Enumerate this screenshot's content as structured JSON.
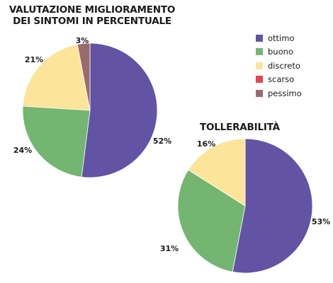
{
  "chart_data": [
    {
      "type": "pie",
      "title_lines": [
        "VALUTAZIONE MIGLIORAMENTO",
        "DEI SINTOMI IN PERCENTUALE"
      ],
      "slices": [
        {
          "label": "ottimo",
          "value": 52,
          "text": "52%",
          "color": "#6353a5"
        },
        {
          "label": "buono",
          "value": 24,
          "text": "24%",
          "color": "#73b571"
        },
        {
          "label": "discreto",
          "value": 21,
          "text": "21%",
          "color": "#fde49b"
        },
        {
          "label": "scarso",
          "value": 0,
          "text": "",
          "color": "#e8444a"
        },
        {
          "label": "pessimo",
          "value": 3,
          "text": "3%",
          "color": "#9a6b6d"
        }
      ]
    },
    {
      "type": "pie",
      "title": "TOLLERABILITÀ",
      "slices": [
        {
          "label": "ottimo",
          "value": 53,
          "text": "53%",
          "color": "#6353a5"
        },
        {
          "label": "buono",
          "value": 31,
          "text": "31%",
          "color": "#73b571"
        },
        {
          "label": "discreto",
          "value": 16,
          "text": "16%",
          "color": "#fde49b"
        }
      ]
    }
  ],
  "legend": [
    {
      "label": "ottimo",
      "color": "#6353a5"
    },
    {
      "label": "buono",
      "color": "#73b571"
    },
    {
      "label": "discreto",
      "color": "#fde49b"
    },
    {
      "label": "scarso",
      "color": "#e8444a"
    },
    {
      "label": "pessimo",
      "color": "#9a6b6d"
    }
  ]
}
